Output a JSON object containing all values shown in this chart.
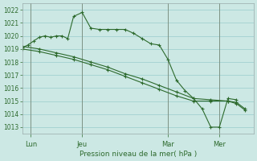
{
  "xlabel": "Pression niveau de la mer( hPa )",
  "bg_color": "#cce8e4",
  "grid_color": "#99cccc",
  "line_color": "#2d6a2d",
  "vline_color": "#778877",
  "ylim": [
    1012.5,
    1022.5
  ],
  "yticks": [
    1013,
    1014,
    1015,
    1016,
    1017,
    1018,
    1019,
    1020,
    1021,
    1022
  ],
  "xlim": [
    0,
    13.5
  ],
  "series1_x": [
    0,
    0.33,
    0.66,
    1.0,
    1.33,
    1.66,
    2.0,
    2.33,
    2.66,
    3.0,
    3.5,
    4.0,
    4.5,
    5.0,
    5.5,
    6.0,
    6.5,
    7.0,
    7.5,
    8.0,
    8.5,
    9.0,
    9.5,
    10.0,
    10.5,
    11.0,
    11.5,
    12.0,
    12.5
  ],
  "series1_y": [
    1019.1,
    1019.3,
    1019.6,
    1019.9,
    1020.0,
    1019.9,
    1020.0,
    1020.0,
    1019.8,
    1021.5,
    1021.8,
    1020.6,
    1020.5,
    1020.5,
    1020.5,
    1020.5,
    1020.2,
    1019.8,
    1019.4,
    1019.3,
    1018.2,
    1016.6,
    1015.8,
    1015.2,
    1014.4,
    1013.0,
    1013.0,
    1015.2,
    1015.1
  ],
  "series2_x": [
    0,
    1.0,
    2.0,
    3.0,
    4.0,
    5.0,
    6.0,
    7.0,
    8.0,
    9.0,
    10.0,
    11.0,
    12.0,
    12.5,
    13.0
  ],
  "series2_y": [
    1019.2,
    1019.0,
    1018.7,
    1018.4,
    1018.0,
    1017.6,
    1017.1,
    1016.7,
    1016.2,
    1015.7,
    1015.2,
    1015.1,
    1015.0,
    1014.9,
    1014.4
  ],
  "series3_x": [
    0,
    1.0,
    2.0,
    3.0,
    4.0,
    5.0,
    6.0,
    7.0,
    8.0,
    9.0,
    10.0,
    11.0,
    12.0,
    12.5,
    13.0
  ],
  "series3_y": [
    1019.0,
    1018.8,
    1018.5,
    1018.2,
    1017.8,
    1017.4,
    1016.9,
    1016.4,
    1015.9,
    1015.4,
    1015.0,
    1015.0,
    1015.0,
    1014.8,
    1014.3
  ],
  "xtick_positions": [
    0.5,
    3.5,
    8.5,
    11.5
  ],
  "xtick_labels": [
    "Lun",
    "Jeu",
    "Mar",
    "Mer"
  ],
  "vline_positions": [
    0.5,
    3.5,
    8.5,
    11.5
  ]
}
